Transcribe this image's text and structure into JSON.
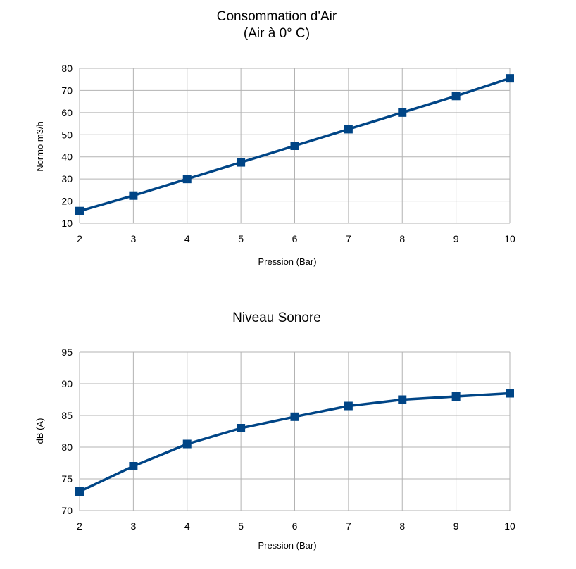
{
  "colors": {
    "series": "#004586",
    "grid": "#b3b3b3",
    "text": "#000000",
    "background": "#ffffff"
  },
  "chart_data": [
    {
      "type": "line",
      "title": "Consommation d'Air",
      "subtitle": "(Air à 0° C)",
      "xlabel": "Pression (Bar)",
      "ylabel": "Normo m3/h",
      "x": [
        2,
        3,
        4,
        5,
        6,
        7,
        8,
        9,
        10
      ],
      "xlim": [
        2,
        10
      ],
      "ylim": [
        10,
        80
      ],
      "yticks": [
        10,
        20,
        30,
        40,
        50,
        60,
        70,
        80
      ],
      "grid": true,
      "legend": "none",
      "marker": "square",
      "series": [
        {
          "values": [
            15.5,
            22.5,
            30,
            37.5,
            45,
            52.5,
            60,
            67.5,
            75.5
          ]
        }
      ]
    },
    {
      "type": "line",
      "title": "Niveau Sonore",
      "xlabel": "Pression (Bar)",
      "ylabel": "dB (A)",
      "x": [
        2,
        3,
        4,
        5,
        6,
        7,
        8,
        9,
        10
      ],
      "xlim": [
        2,
        10
      ],
      "ylim": [
        70,
        95
      ],
      "yticks": [
        70,
        75,
        80,
        85,
        90,
        95
      ],
      "grid": true,
      "legend": "none",
      "marker": "square",
      "series": [
        {
          "values": [
            73,
            77,
            80.5,
            83,
            84.8,
            86.5,
            87.5,
            88,
            88.5
          ]
        }
      ]
    }
  ]
}
